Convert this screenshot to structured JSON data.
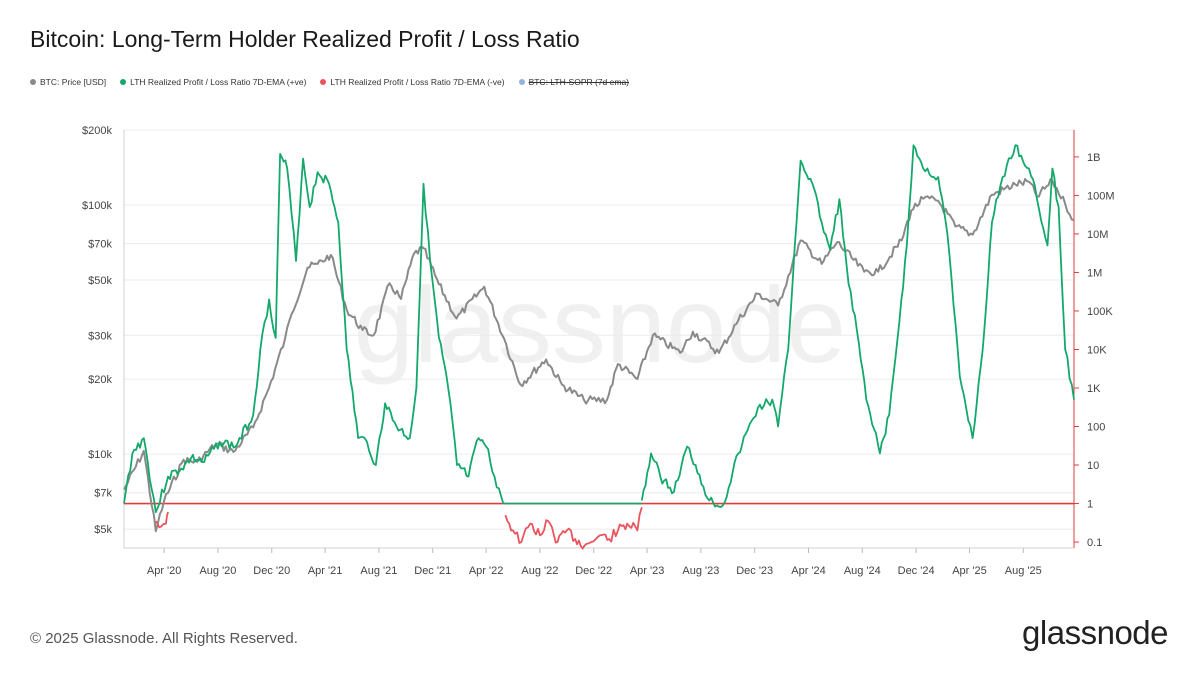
{
  "chart_data": {
    "type": "line",
    "title": "Bitcoin: Long-Term Holder Realized Profit / Loss Ratio",
    "watermark": "glassnode",
    "y_scale": "log",
    "grid": true,
    "legend_position": "top-left",
    "x_range": [
      "2020-01-01",
      "2025-11-24"
    ],
    "x_ticks": [
      {
        "date": "2020-04-01",
        "label": "Apr '20"
      },
      {
        "date": "2020-08-01",
        "label": "Aug '20"
      },
      {
        "date": "2020-12-01",
        "label": "Dec '20"
      },
      {
        "date": "2021-04-01",
        "label": "Apr '21"
      },
      {
        "date": "2021-08-01",
        "label": "Aug '21"
      },
      {
        "date": "2021-12-01",
        "label": "Dec '21"
      },
      {
        "date": "2022-04-01",
        "label": "Apr '22"
      },
      {
        "date": "2022-08-01",
        "label": "Aug '22"
      },
      {
        "date": "2022-12-01",
        "label": "Dec '22"
      },
      {
        "date": "2023-04-01",
        "label": "Apr '23"
      },
      {
        "date": "2023-08-01",
        "label": "Aug '23"
      },
      {
        "date": "2023-12-01",
        "label": "Dec '23"
      },
      {
        "date": "2024-04-01",
        "label": "Apr '24"
      },
      {
        "date": "2024-08-01",
        "label": "Aug '24"
      },
      {
        "date": "2024-12-01",
        "label": "Dec '24"
      },
      {
        "date": "2025-04-01",
        "label": "Apr '25"
      },
      {
        "date": "2025-08-01",
        "label": "Aug '25"
      }
    ],
    "left_axis": {
      "label": "",
      "range": [
        4200,
        200000
      ],
      "ticks": [
        {
          "value": 5000,
          "label": "$5k"
        },
        {
          "value": 7000,
          "label": "$7k"
        },
        {
          "value": 10000,
          "label": "$10k"
        },
        {
          "value": 20000,
          "label": "$20k"
        },
        {
          "value": 30000,
          "label": "$30k"
        },
        {
          "value": 50000,
          "label": "$50k"
        },
        {
          "value": 70000,
          "label": "$70k"
        },
        {
          "value": 100000,
          "label": "$100k"
        },
        {
          "value": 200000,
          "label": "$200k"
        }
      ]
    },
    "right_axis": {
      "label": "",
      "range": [
        0.07,
        5000000000
      ],
      "color": "#e23b3b",
      "ticks": [
        {
          "value": 0.1,
          "label": "0.1"
        },
        {
          "value": 1,
          "label": "1"
        },
        {
          "value": 10,
          "label": "10"
        },
        {
          "value": 100,
          "label": "100"
        },
        {
          "value": 1000,
          "label": "1K"
        },
        {
          "value": 10000,
          "label": "10K"
        },
        {
          "value": 100000,
          "label": "100K"
        },
        {
          "value": 1000000,
          "label": "1M"
        },
        {
          "value": 10000000,
          "label": "10M"
        },
        {
          "value": 100000000,
          "label": "100M"
        },
        {
          "value": 1000000000,
          "label": "1B"
        }
      ]
    },
    "reference_line": {
      "value": 1,
      "axis": "right",
      "color": "#e23b3b"
    },
    "series": [
      {
        "name": "BTC: Price [USD]",
        "color": "#8a8a8a",
        "axis": "left",
        "points": [
          [
            "2020-01-01",
            7200
          ],
          [
            "2020-02-15",
            10300
          ],
          [
            "2020-03-13",
            4900
          ],
          [
            "2020-04-01",
            6500
          ],
          [
            "2020-05-15",
            9500
          ],
          [
            "2020-06-15",
            9300
          ],
          [
            "2020-07-28",
            11000
          ],
          [
            "2020-09-05",
            10200
          ],
          [
            "2020-10-20",
            12800
          ],
          [
            "2020-11-25",
            18500
          ],
          [
            "2020-12-31",
            29000
          ],
          [
            "2021-01-15",
            36500
          ],
          [
            "2021-02-20",
            56000
          ],
          [
            "2021-03-15",
            58000
          ],
          [
            "2021-04-14",
            63000
          ],
          [
            "2021-05-20",
            38000
          ],
          [
            "2021-06-25",
            31500
          ],
          [
            "2021-07-20",
            30000
          ],
          [
            "2021-08-25",
            48500
          ],
          [
            "2021-09-20",
            42000
          ],
          [
            "2021-10-20",
            64000
          ],
          [
            "2021-11-10",
            67000
          ],
          [
            "2021-12-15",
            48000
          ],
          [
            "2022-01-24",
            35000
          ],
          [
            "2022-03-28",
            47000
          ],
          [
            "2022-05-12",
            29000
          ],
          [
            "2022-06-18",
            19000
          ],
          [
            "2022-08-15",
            24000
          ],
          [
            "2022-09-20",
            19000
          ],
          [
            "2022-11-09",
            16500
          ],
          [
            "2022-12-31",
            16500
          ],
          [
            "2023-01-25",
            23000
          ],
          [
            "2023-03-10",
            20000
          ],
          [
            "2023-04-14",
            30000
          ],
          [
            "2023-06-15",
            25500
          ],
          [
            "2023-07-14",
            31000
          ],
          [
            "2023-09-11",
            25500
          ],
          [
            "2023-10-25",
            34500
          ],
          [
            "2023-12-08",
            44000
          ],
          [
            "2024-01-23",
            39500
          ],
          [
            "2024-03-14",
            72000
          ],
          [
            "2024-05-01",
            58000
          ],
          [
            "2024-06-05",
            71000
          ],
          [
            "2024-08-05",
            54000
          ],
          [
            "2024-09-06",
            54000
          ],
          [
            "2024-10-29",
            72000
          ],
          [
            "2024-11-20",
            95000
          ],
          [
            "2024-12-17",
            106000
          ],
          [
            "2025-01-20",
            104000
          ],
          [
            "2025-02-28",
            82000
          ],
          [
            "2025-04-08",
            76000
          ],
          [
            "2025-05-22",
            110000
          ],
          [
            "2025-07-14",
            121000
          ],
          [
            "2025-08-14",
            124000
          ],
          [
            "2025-09-01",
            108000
          ],
          [
            "2025-10-06",
            125000
          ],
          [
            "2025-11-04",
            101000
          ],
          [
            "2025-11-24",
            87000
          ]
        ]
      },
      {
        "name": "LTH Realized Profit / Loss Ratio 7D-EMA (+ve)",
        "color": "#14a86b",
        "axis": "right",
        "points": [
          [
            "2020-01-01",
            1
          ],
          [
            "2020-01-20",
            20
          ],
          [
            "2020-02-15",
            50
          ],
          [
            "2020-03-13",
            0.6
          ],
          [
            "2020-04-10",
            5
          ],
          [
            "2020-05-10",
            8
          ],
          [
            "2020-06-01",
            15
          ],
          [
            "2020-07-01",
            12
          ],
          [
            "2020-08-05",
            40
          ],
          [
            "2020-09-10",
            30
          ],
          [
            "2020-10-20",
            200
          ],
          [
            "2020-11-05",
            10000
          ],
          [
            "2020-11-25",
            200000
          ],
          [
            "2020-12-10",
            20000
          ],
          [
            "2020-12-20",
            1200000000
          ],
          [
            "2021-01-05",
            500000000
          ],
          [
            "2021-01-25",
            2000000
          ],
          [
            "2021-02-10",
            900000000
          ],
          [
            "2021-02-25",
            50000000
          ],
          [
            "2021-03-15",
            400000000
          ],
          [
            "2021-04-10",
            200000000
          ],
          [
            "2021-05-01",
            20000000
          ],
          [
            "2021-05-20",
            10000
          ],
          [
            "2021-06-15",
            50
          ],
          [
            "2021-07-05",
            40
          ],
          [
            "2021-07-25",
            10
          ],
          [
            "2021-08-15",
            400
          ],
          [
            "2021-09-10",
            100
          ],
          [
            "2021-10-10",
            50
          ],
          [
            "2021-10-25",
            1000
          ],
          [
            "2021-11-10",
            200000000
          ],
          [
            "2021-11-25",
            2000000
          ],
          [
            "2021-12-15",
            20000
          ],
          [
            "2022-01-05",
            1000
          ],
          [
            "2022-01-25",
            10
          ],
          [
            "2022-02-20",
            5
          ],
          [
            "2022-03-15",
            50
          ],
          [
            "2022-04-01",
            30
          ],
          [
            "2022-04-20",
            5
          ],
          [
            "2022-05-10",
            1
          ]
        ]
      },
      {
        "name": "LTH Realized Profit / Loss Ratio 7D-EMA (-ve)",
        "color": "#e9545d",
        "axis": "right",
        "points": [
          [
            "2020-03-13",
            0.35
          ],
          [
            "2020-03-25",
            0.25
          ],
          [
            "2020-04-05",
            0.3
          ],
          [
            "2020-04-10",
            0.6
          ],
          [
            "2022-05-15",
            0.5
          ],
          [
            "2022-06-01",
            0.2
          ],
          [
            "2022-06-20",
            0.1
          ],
          [
            "2022-07-10",
            0.3
          ],
          [
            "2022-08-01",
            0.15
          ],
          [
            "2022-08-20",
            0.35
          ],
          [
            "2022-09-10",
            0.1
          ],
          [
            "2022-10-01",
            0.2
          ],
          [
            "2022-10-20",
            0.12
          ],
          [
            "2022-11-10",
            0.08
          ],
          [
            "2022-11-25",
            0.1
          ],
          [
            "2022-12-15",
            0.15
          ],
          [
            "2023-01-05",
            0.12
          ],
          [
            "2023-01-25",
            0.2
          ],
          [
            "2023-02-15",
            0.3
          ],
          [
            "2023-03-10",
            0.2
          ],
          [
            "2023-03-20",
            0.8
          ]
        ]
      },
      {
        "name": "BTC: LTH-SOPR (7d ema)",
        "color": "#93b3de",
        "axis": "right",
        "hidden": true,
        "points": []
      }
    ],
    "plus_series_continued": {
      "name": "LTH Realized Profit / Loss Ratio 7D-EMA (+ve)",
      "points": [
        [
          "2023-03-20",
          1.2
        ],
        [
          "2023-04-10",
          20
        ],
        [
          "2023-05-01",
          5
        ],
        [
          "2023-06-01",
          2
        ],
        [
          "2023-07-01",
          30
        ],
        [
          "2023-07-20",
          10
        ],
        [
          "2023-08-20",
          1.2
        ],
        [
          "2023-09-20",
          0.9
        ],
        [
          "2023-10-25",
          20
        ],
        [
          "2023-11-15",
          80
        ],
        [
          "2023-12-08",
          300
        ],
        [
          "2024-01-10",
          500
        ],
        [
          "2024-01-23",
          100
        ],
        [
          "2024-02-15",
          10000
        ],
        [
          "2024-03-01",
          5000000
        ],
        [
          "2024-03-14",
          800000000
        ],
        [
          "2024-04-10",
          200000000
        ],
        [
          "2024-05-01",
          20000000
        ],
        [
          "2024-05-20",
          4000000
        ],
        [
          "2024-06-10",
          80000000
        ],
        [
          "2024-07-01",
          500000
        ],
        [
          "2024-07-20",
          30000
        ],
        [
          "2024-08-10",
          500
        ],
        [
          "2024-09-10",
          20
        ],
        [
          "2024-10-01",
          200
        ],
        [
          "2024-10-20",
          20000
        ],
        [
          "2024-11-10",
          5000000
        ],
        [
          "2024-11-25",
          2000000000
        ],
        [
          "2024-12-17",
          500000000
        ],
        [
          "2025-01-20",
          300000000
        ],
        [
          "2025-02-10",
          10000000
        ],
        [
          "2025-03-10",
          2000
        ],
        [
          "2025-04-08",
          50
        ],
        [
          "2025-05-01",
          10000
        ],
        [
          "2025-05-22",
          20000000
        ],
        [
          "2025-06-15",
          300000000
        ],
        [
          "2025-07-14",
          2000000000
        ],
        [
          "2025-08-14",
          500000000
        ],
        [
          "2025-09-01",
          80000000
        ],
        [
          "2025-09-25",
          5000000
        ],
        [
          "2025-10-06",
          500000000
        ],
        [
          "2025-10-20",
          50000000
        ],
        [
          "2025-11-04",
          10000
        ],
        [
          "2025-11-24",
          500
        ]
      ]
    }
  },
  "footer": {
    "copyright": "© 2025 Glassnode. All Rights Reserved.",
    "brand": "glassnode"
  }
}
